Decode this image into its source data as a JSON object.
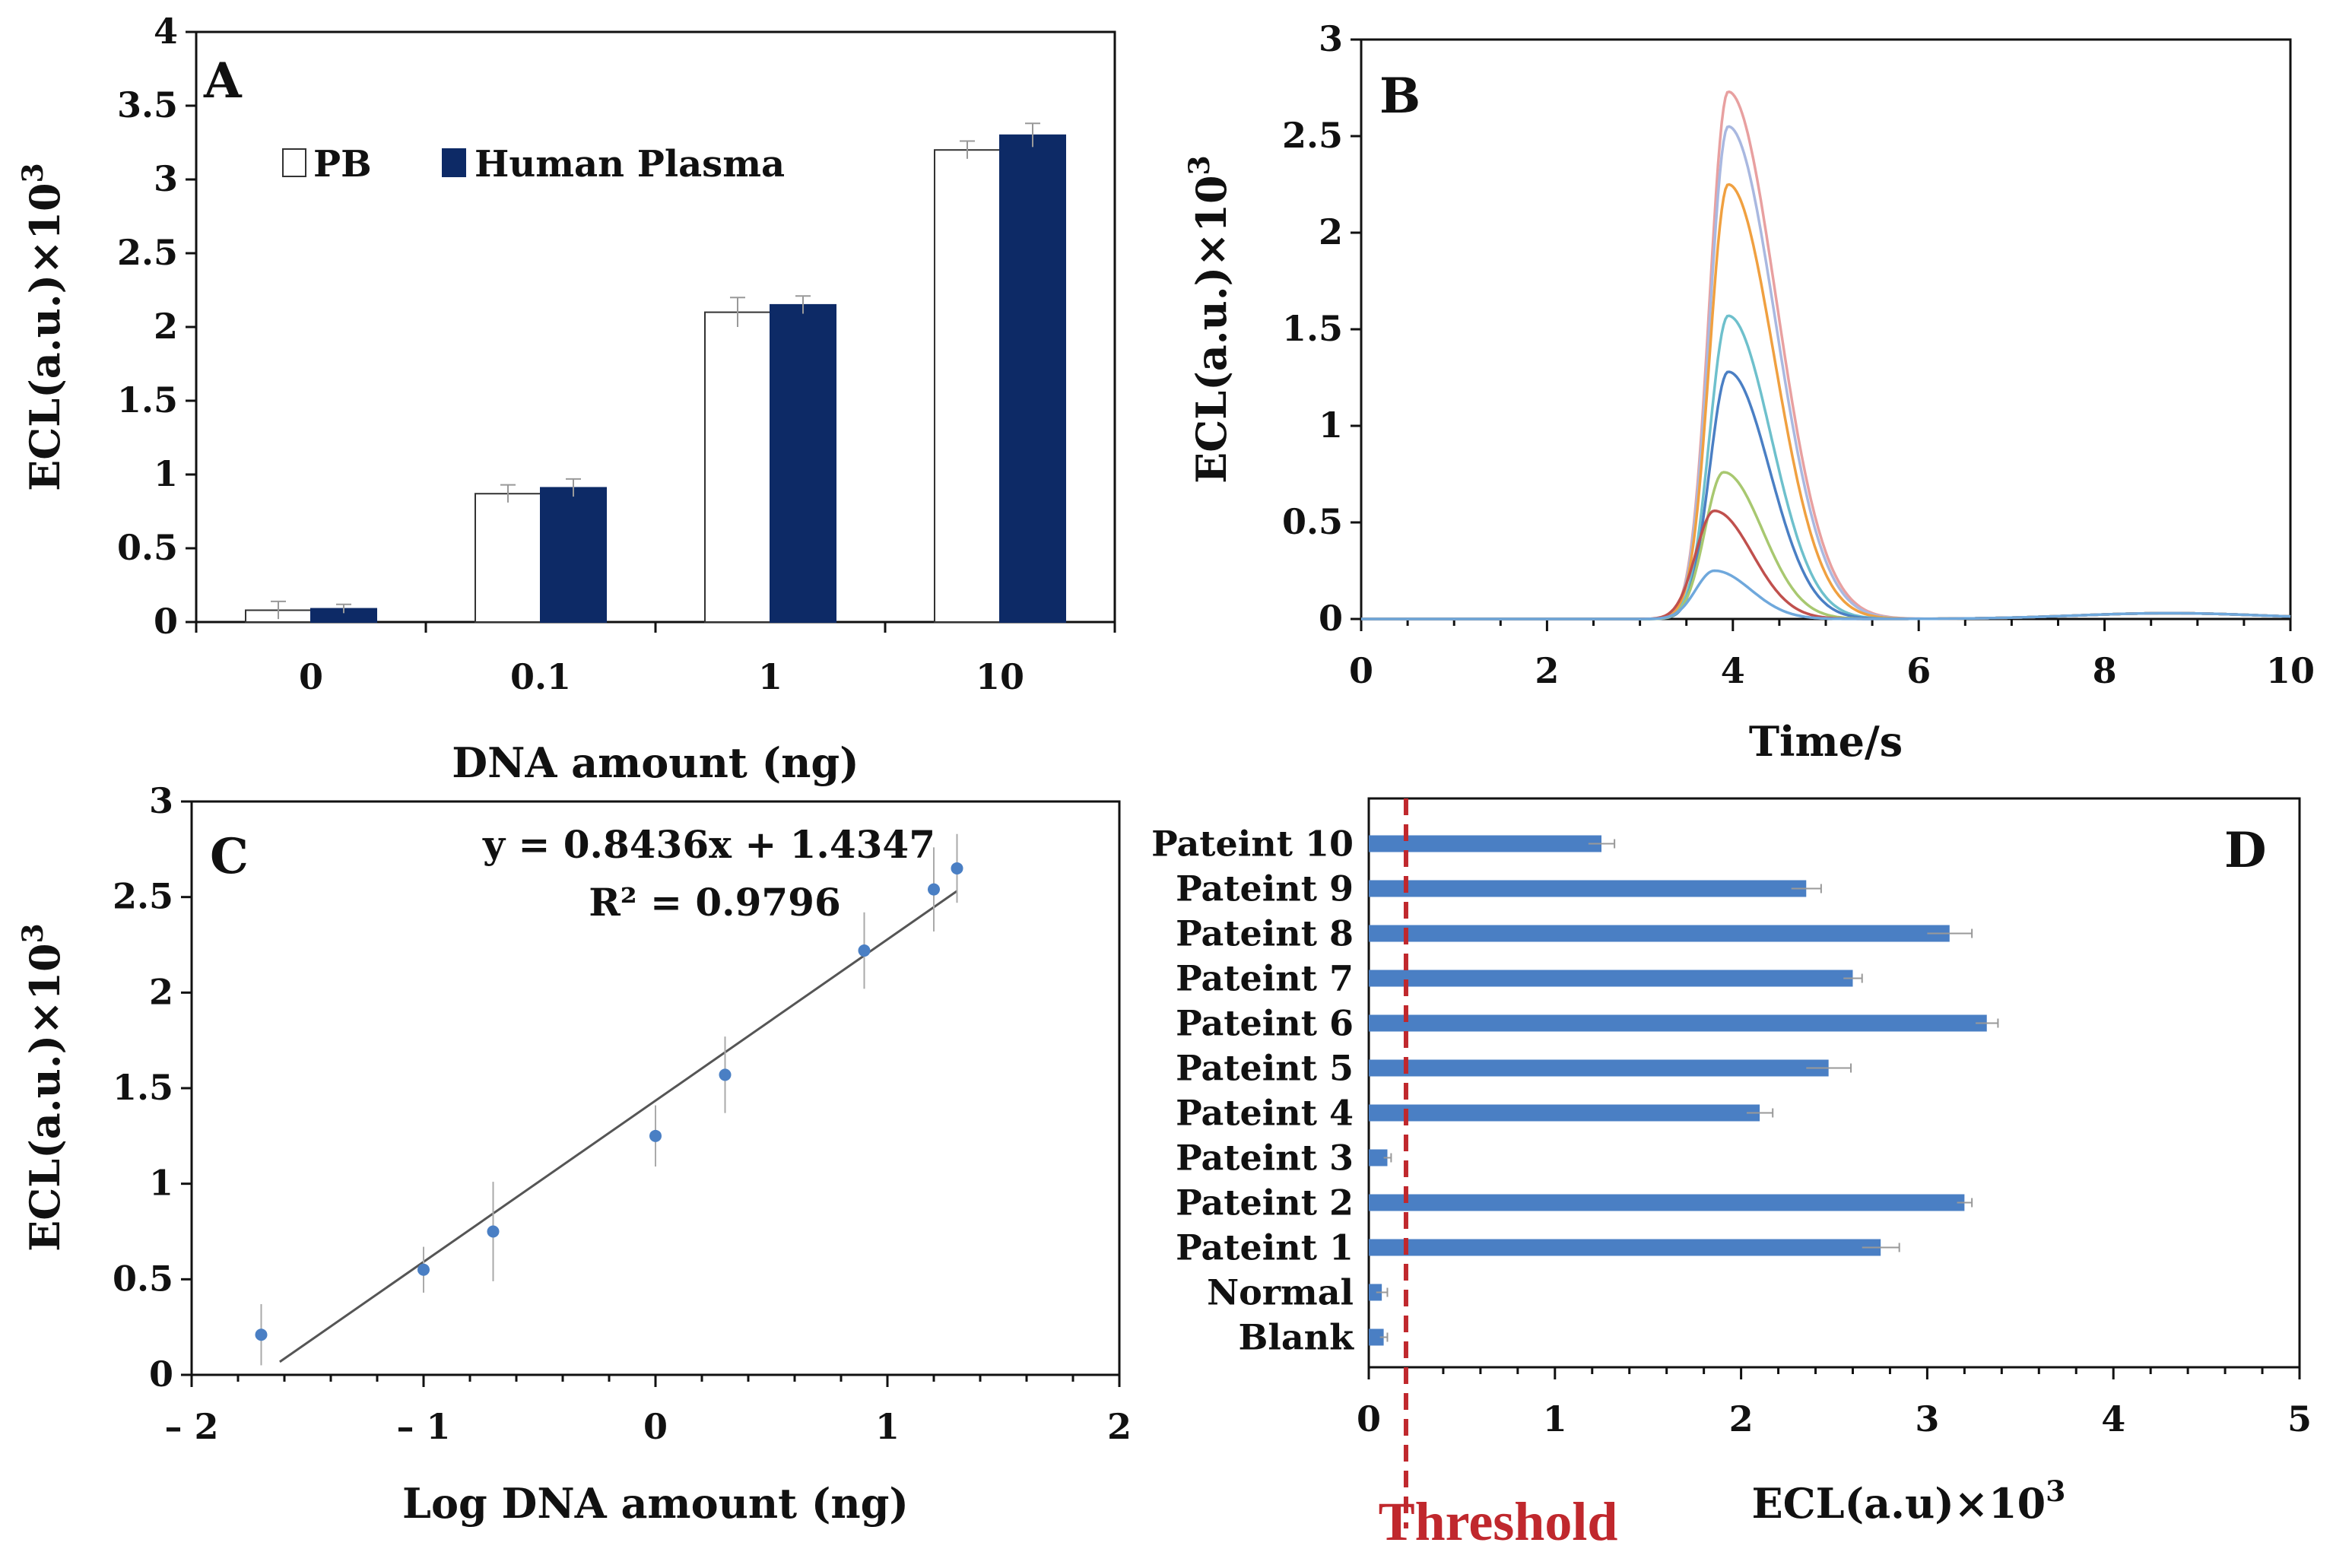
{
  "colors": {
    "navy": "#0d2a66",
    "steel": "#4a7fc4",
    "threshold": "#c0282d",
    "axis": "#111111"
  },
  "chart_data": [
    {
      "panel": "A",
      "type": "bar",
      "xlabel": "DNA amount (ng)",
      "ylabel": "ECL(a.u.)×10³",
      "ylim": [
        0,
        4
      ],
      "yticks": [
        "0",
        "0.5",
        "1",
        "1.5",
        "2",
        "2.5",
        "3",
        "3.5",
        "4"
      ],
      "categories": [
        "0",
        "0.1",
        "1",
        "10"
      ],
      "series": [
        {
          "name": "PB",
          "values": [
            0.08,
            0.87,
            2.1,
            3.2
          ],
          "errors": [
            0.06,
            0.06,
            0.1,
            0.06
          ],
          "color": "#ffffff"
        },
        {
          "name": "Human Plasma",
          "values": [
            0.09,
            0.91,
            2.15,
            3.3
          ],
          "errors": [
            0.03,
            0.06,
            0.06,
            0.08
          ],
          "color": "#0d2a66"
        }
      ],
      "legend": "top-left"
    },
    {
      "panel": "B",
      "type": "line",
      "xlabel": "Time/s",
      "ylabel": "ECL(a.u.)×10³",
      "xlim": [
        0,
        10
      ],
      "ylim": [
        0,
        3
      ],
      "xticks": [
        "0",
        "2",
        "4",
        "6",
        "8",
        "10"
      ],
      "yticks": [
        "0",
        "0.5",
        "1",
        "1.5",
        "2",
        "2.5",
        "3"
      ],
      "series": [
        {
          "peak_time": 3.95,
          "peak": 2.73,
          "color": "#e8a0a0"
        },
        {
          "peak_time": 3.95,
          "peak": 2.55,
          "color": "#a9b8e0"
        },
        {
          "peak_time": 3.95,
          "peak": 2.25,
          "color": "#f0a040"
        },
        {
          "peak_time": 3.95,
          "peak": 1.57,
          "color": "#6ec0cc"
        },
        {
          "peak_time": 3.95,
          "peak": 1.28,
          "color": "#4a7fc4"
        },
        {
          "peak_time": 3.9,
          "peak": 0.76,
          "color": "#a8c870"
        },
        {
          "peak_time": 3.8,
          "peak": 0.56,
          "color": "#c0504d"
        },
        {
          "peak_time": 3.8,
          "peak": 0.25,
          "color": "#6fa8dc"
        }
      ]
    },
    {
      "panel": "C",
      "type": "scatter",
      "xlabel": "Log DNA amount (ng)",
      "ylabel": "ECL(a.u.)×10³",
      "xlim": [
        -2,
        2
      ],
      "ylim": [
        0,
        3
      ],
      "xticks": [
        "– 2",
        "– 1",
        "0",
        "1",
        "2"
      ],
      "yticks": [
        "0",
        "0.5",
        "1",
        "1.5",
        "2",
        "2.5",
        "3"
      ],
      "points": [
        {
          "x": -1.7,
          "y": 0.21,
          "err": 0.16
        },
        {
          "x": -1.0,
          "y": 0.55,
          "err": 0.12
        },
        {
          "x": -0.7,
          "y": 0.75,
          "err": 0.26
        },
        {
          "x": 0.0,
          "y": 1.25,
          "err": 0.16
        },
        {
          "x": 0.3,
          "y": 1.57,
          "err": 0.2
        },
        {
          "x": 0.9,
          "y": 2.22,
          "err": 0.2
        },
        {
          "x": 1.2,
          "y": 2.54,
          "err": 0.22
        },
        {
          "x": 1.3,
          "y": 2.65,
          "err": 0.18
        }
      ],
      "fit": {
        "slope": 0.8436,
        "intercept": 1.4347,
        "x_range": [
          -1.7,
          1.3
        ]
      },
      "equation": "y = 0.8436x + 1.4347",
      "r2_label": "R² = 0.9796"
    },
    {
      "panel": "D",
      "type": "bar",
      "orientation": "horizontal",
      "xlabel": "ECL(a.u)×10³",
      "xlim": [
        0,
        5
      ],
      "xticks": [
        "0",
        "1",
        "2",
        "3",
        "4",
        "5"
      ],
      "categories": [
        "Pateint 10",
        "Pateint 9",
        "Pateint 8",
        "Pateint 7",
        "Pateint 6",
        "Pateint 5",
        "Pateint 4",
        "Pateint 3",
        "Pateint 2",
        "Pateint 1",
        "Normal",
        "Blank"
      ],
      "values": [
        1.25,
        2.35,
        3.12,
        2.6,
        3.32,
        2.47,
        2.1,
        0.1,
        3.2,
        2.75,
        0.07,
        0.08
      ],
      "errors": [
        0.07,
        0.08,
        0.12,
        0.05,
        0.06,
        0.12,
        0.07,
        0.02,
        0.04,
        0.1,
        0.03,
        0.02
      ],
      "threshold": {
        "value": 0.2,
        "label": "Threshold"
      }
    }
  ]
}
